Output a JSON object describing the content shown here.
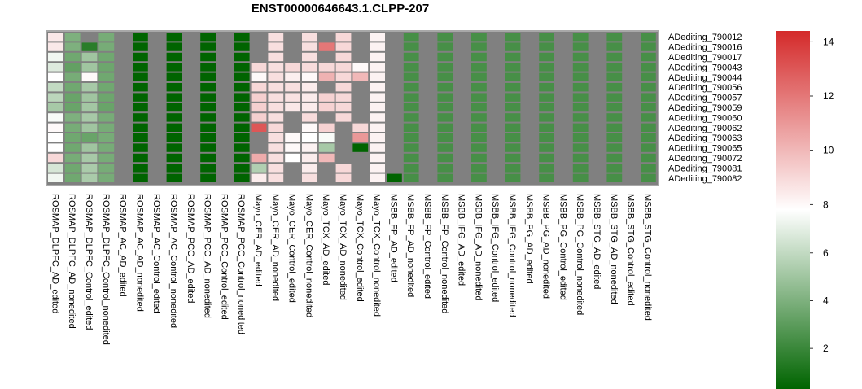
{
  "chart_data": {
    "type": "heatmap",
    "title": "ENST00000646643.1.CLPP-207",
    "na_color": "#808080",
    "columns": [
      "ROSMAP_DLPFC_AD_edited",
      "ROSMAP_DLPFC_AD_nonedited",
      "ROSMAP_DLPFC_Control_edited",
      "ROSMAP_DLPFC_Control_nonedited",
      "ROSMAP_AC_AD_edited",
      "ROSMAP_AC_AD_nonedited",
      "ROSMAP_AC_Control_edited",
      "ROSMAP_AC_Control_nonedited",
      "ROSMAP_PCC_AD_edited",
      "ROSMAP_PCC_AD_nonedited",
      "ROSMAP_PCC_Control_edited",
      "ROSMAP_PCC_Control_nonedited",
      "Mayo_CER_AD_edited",
      "Mayo_CER_AD_nonedited",
      "Mayo_CER_Control_edited",
      "Mayo_CER_Control_nonedited",
      "Mayo_TCX_AD_edited",
      "Mayo_TCX_AD_nonedited",
      "Mayo_TCX_Control_edited",
      "Mayo_TCX_Control_nonedited",
      "MSBB_FP_AD_edited",
      "MSBB_FP_AD_nonedited",
      "MSBB_FP_Control_edited",
      "MSBB_FP_Control_nonedited",
      "MSBB_IFG_AD_edited",
      "MSBB_IFG_AD_nonedited",
      "MSBB_IFG_Control_edited",
      "MSBB_IFG_Control_nonedited",
      "MSBB_PG_AD_edited",
      "MSBB_PG_AD_nonedited",
      "MSBB_PG_Control_edited",
      "MSBB_PG_Control_nonedited",
      "MSBB_STG_AD_edited",
      "MSBB_STG_AD_nonedited",
      "MSBB_STG_Control_edited",
      "MSBB_STG_Control_nonedited"
    ],
    "rows": [
      "ADediting_790012",
      "ADediting_790016",
      "ADediting_790017",
      "ADediting_790043",
      "ADediting_790044",
      "ADediting_790056",
      "ADediting_790057",
      "ADediting_790059",
      "ADediting_790060",
      "ADediting_790062",
      "ADediting_790063",
      "ADediting_790065",
      "ADediting_790072",
      "ADediting_790081",
      "ADediting_790082"
    ],
    "values": [
      [
        8.5,
        4.0,
        null,
        3.8,
        null,
        0.2,
        null,
        0.2,
        null,
        0.2,
        null,
        0.2,
        null,
        8.8,
        null,
        8.8,
        null,
        9.0,
        null,
        8.2,
        null,
        2.4,
        null,
        2.4,
        null,
        2.4,
        null,
        2.4,
        null,
        2.4,
        null,
        2.4,
        null,
        2.4,
        null,
        2.4
      ],
      [
        8.5,
        4.0,
        1.5,
        3.8,
        null,
        0.2,
        null,
        0.2,
        null,
        0.2,
        null,
        0.2,
        null,
        8.8,
        null,
        8.8,
        12.0,
        9.0,
        null,
        8.2,
        null,
        2.4,
        null,
        2.4,
        null,
        2.4,
        null,
        2.4,
        null,
        2.4,
        null,
        2.4,
        null,
        2.4,
        null,
        2.4
      ],
      [
        7.4,
        3.6,
        5.0,
        3.6,
        null,
        0.2,
        null,
        0.2,
        null,
        0.2,
        null,
        0.2,
        null,
        8.8,
        null,
        8.8,
        null,
        9.0,
        null,
        8.2,
        null,
        2.4,
        null,
        2.4,
        null,
        2.4,
        null,
        2.4,
        null,
        2.4,
        null,
        2.4,
        null,
        2.4,
        null,
        2.4
      ],
      [
        6.8,
        3.2,
        5.0,
        3.5,
        null,
        0.2,
        null,
        0.2,
        null,
        0.2,
        null,
        0.2,
        9.0,
        8.8,
        9.0,
        8.9,
        9.0,
        9.0,
        8.0,
        8.2,
        null,
        2.4,
        null,
        2.4,
        null,
        2.4,
        null,
        2.4,
        null,
        2.4,
        null,
        2.4,
        null,
        2.4,
        null,
        2.4
      ],
      [
        7.8,
        3.8,
        8.0,
        3.6,
        null,
        0.2,
        null,
        0.2,
        null,
        0.2,
        null,
        0.2,
        8.0,
        8.8,
        8.3,
        8.0,
        10.2,
        9.0,
        10.0,
        8.2,
        null,
        2.4,
        null,
        2.4,
        null,
        2.4,
        null,
        2.4,
        null,
        2.4,
        null,
        2.4,
        null,
        2.4,
        null,
        2.4
      ],
      [
        6.0,
        3.6,
        5.2,
        3.6,
        null,
        0.2,
        null,
        0.2,
        null,
        0.2,
        null,
        0.2,
        9.0,
        8.8,
        8.8,
        8.4,
        null,
        9.0,
        null,
        8.2,
        null,
        2.4,
        null,
        2.4,
        null,
        2.4,
        null,
        2.4,
        null,
        2.4,
        null,
        2.4,
        null,
        2.4,
        null,
        2.4
      ],
      [
        5.8,
        3.4,
        5.0,
        3.5,
        null,
        0.2,
        null,
        0.2,
        null,
        0.2,
        null,
        0.2,
        9.3,
        8.8,
        8.7,
        8.4,
        9.2,
        9.0,
        null,
        8.2,
        null,
        2.4,
        null,
        2.4,
        null,
        2.4,
        null,
        2.4,
        null,
        2.4,
        null,
        2.4,
        null,
        2.4,
        null,
        2.4
      ],
      [
        5.2,
        3.4,
        5.1,
        3.4,
        null,
        0.2,
        null,
        0.2,
        null,
        0.2,
        null,
        0.2,
        9.3,
        8.8,
        8.5,
        8.4,
        9.2,
        9.0,
        null,
        8.2,
        null,
        2.4,
        null,
        2.4,
        null,
        2.4,
        null,
        2.4,
        null,
        2.4,
        null,
        2.4,
        null,
        2.4,
        null,
        2.4
      ],
      [
        7.6,
        4.0,
        5.2,
        3.8,
        null,
        0.2,
        null,
        0.2,
        null,
        0.2,
        null,
        0.2,
        9.3,
        8.8,
        null,
        8.9,
        null,
        9.0,
        null,
        8.2,
        null,
        2.4,
        null,
        2.4,
        null,
        2.4,
        null,
        2.4,
        null,
        2.4,
        null,
        2.4,
        null,
        2.4,
        null,
        2.4
      ],
      [
        8.0,
        3.8,
        5.0,
        3.8,
        null,
        0.2,
        null,
        0.2,
        null,
        0.2,
        null,
        0.2,
        13.0,
        9.0,
        null,
        8.0,
        9.2,
        null,
        9.0,
        8.2,
        null,
        2.4,
        null,
        2.4,
        null,
        2.4,
        null,
        2.4,
        null,
        2.4,
        null,
        2.4,
        null,
        2.4,
        null,
        2.4
      ],
      [
        7.8,
        3.6,
        3.4,
        3.8,
        null,
        0.2,
        null,
        0.2,
        null,
        0.2,
        null,
        0.2,
        null,
        8.8,
        8.0,
        7.8,
        7.6,
        null,
        11.0,
        8.2,
        null,
        2.4,
        null,
        2.4,
        null,
        2.4,
        null,
        2.4,
        null,
        2.4,
        null,
        2.4,
        null,
        2.4,
        null,
        2.4
      ],
      [
        7.8,
        3.6,
        5.0,
        3.8,
        null,
        0.2,
        null,
        0.2,
        null,
        0.2,
        null,
        0.2,
        null,
        8.8,
        8.0,
        8.2,
        5.2,
        null,
        0.3,
        8.2,
        null,
        2.4,
        null,
        2.4,
        null,
        2.4,
        null,
        2.4,
        null,
        2.4,
        null,
        2.4,
        null,
        2.4,
        null,
        2.4
      ],
      [
        9.0,
        3.8,
        5.2,
        3.8,
        null,
        0.2,
        null,
        0.2,
        null,
        0.2,
        null,
        0.2,
        10.4,
        8.8,
        7.8,
        8.4,
        10.0,
        null,
        null,
        8.2,
        null,
        2.4,
        null,
        2.4,
        null,
        2.4,
        null,
        2.4,
        null,
        2.4,
        null,
        2.4,
        null,
        2.4,
        null,
        2.4
      ],
      [
        6.6,
        3.6,
        5.3,
        3.8,
        null,
        0.2,
        null,
        0.2,
        null,
        0.2,
        null,
        0.2,
        5.5,
        8.8,
        null,
        8.4,
        null,
        9.0,
        null,
        8.2,
        null,
        2.4,
        null,
        2.4,
        null,
        2.4,
        null,
        2.4,
        null,
        2.4,
        null,
        2.4,
        null,
        2.4,
        null,
        2.4
      ],
      [
        7.4,
        3.6,
        5.3,
        3.8,
        null,
        0.2,
        null,
        0.2,
        null,
        0.2,
        null,
        0.2,
        8.4,
        8.8,
        null,
        8.8,
        null,
        9.0,
        null,
        8.2,
        0.3,
        2.4,
        null,
        2.4,
        null,
        2.4,
        null,
        2.4,
        null,
        2.4,
        null,
        2.4,
        null,
        2.4,
        null,
        2.4
      ]
    ],
    "colorscale": {
      "min": 0.3,
      "mid": 7.8,
      "max": 14.4,
      "low_color": "#006400",
      "mid_color": "#ffffff",
      "high_color": "#d42a2a",
      "ticks": [
        2,
        4,
        6,
        8,
        10,
        12,
        14
      ]
    }
  }
}
